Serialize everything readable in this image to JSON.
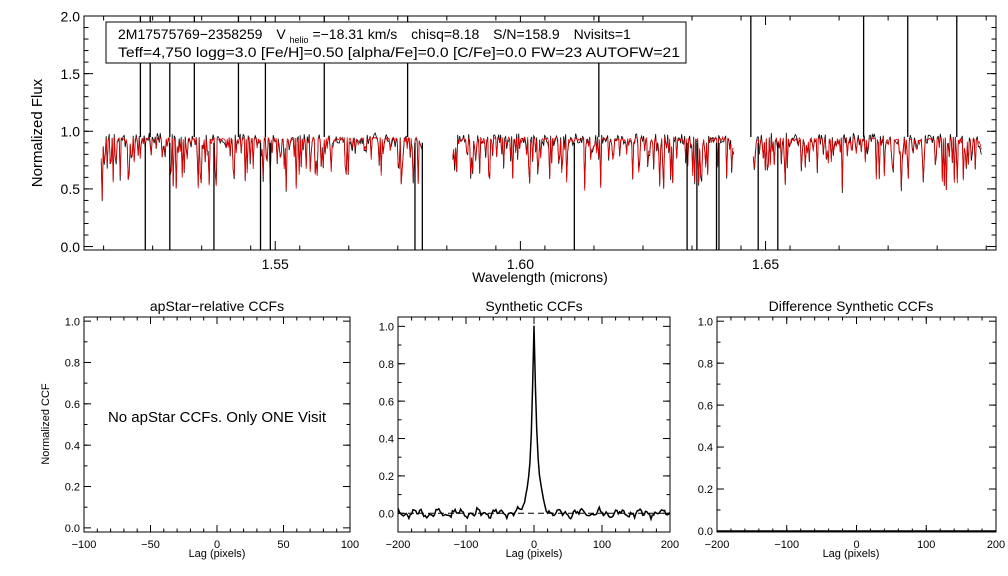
{
  "colors": {
    "observed": "#000000",
    "model": "#e00000",
    "axis": "#000000",
    "background": "#ffffff"
  },
  "chart_data": [
    {
      "id": "spectrum",
      "type": "line",
      "title": "",
      "xlabel": "Wavelength (microns)",
      "ylabel": "Normalized Flux",
      "xlim": [
        1.511,
        1.697
      ],
      "ylim": [
        -0.03,
        2.0
      ],
      "xticks": [
        1.55,
        1.6,
        1.65
      ],
      "xtick_labels": [
        "1.55",
        "1.60",
        "1.65"
      ],
      "yticks": [
        0.0,
        0.5,
        1.0,
        1.5,
        2.0
      ],
      "ytick_labels": [
        "0.0",
        "0.5",
        "1.0",
        "1.5",
        "2.0"
      ],
      "chips": [
        [
          1.5145,
          1.5801
        ],
        [
          1.5862,
          1.6437
        ],
        [
          1.6475,
          1.6942
        ]
      ],
      "continuum": 0.95,
      "annotation": {
        "star_id": "2M17575769−2358259",
        "vhelio_label": "V",
        "vhelio_sub": "helio",
        "vhelio_value": "=−18.31 km/s",
        "chisq": "chisq=8.18",
        "snr": "S/N=158.9",
        "nvisits": "Nvisits=1",
        "params_line": "Teff=4,750 logg=3.0 [Fe/H]=0.50 [alpha/Fe]=0.0 [C/Fe]=0.0 FW=23 AUTOFW=21"
      },
      "series": [
        {
          "name": "observed",
          "color": "#000000",
          "spikes_up": [
            1.5225,
            1.5245,
            1.5285,
            1.5335,
            1.5425,
            1.548,
            1.56,
            1.577,
            1.616,
            1.647,
            1.67,
            1.679,
            1.689
          ],
          "spikes_down": [
            1.5235,
            1.5285,
            1.5375,
            1.547,
            1.549,
            1.5785,
            1.58,
            1.611,
            1.634,
            1.636,
            1.64,
            1.6405,
            1.6485,
            1.6525
          ]
        },
        {
          "name": "model",
          "color": "#e00000"
        }
      ]
    },
    {
      "id": "apstar-ccf",
      "type": "line",
      "title": "apStar−relative CCFs",
      "xlabel": "Lag (pixels)",
      "ylabel": "Normalized CCF",
      "xlim": [
        -100,
        100
      ],
      "ylim": [
        -0.02,
        1.02
      ],
      "xticks": [
        -100,
        -50,
        0,
        50,
        100
      ],
      "xtick_labels": [
        "−100",
        "−50",
        "0",
        "50",
        "100"
      ],
      "yticks": [
        0.0,
        0.2,
        0.4,
        0.6,
        0.8,
        1.0
      ],
      "ytick_labels": [
        "0.0",
        "0.2",
        "0.4",
        "0.6",
        "0.8",
        "1.0"
      ],
      "message": "No apStar CCFs.  Only ONE Visit",
      "series": []
    },
    {
      "id": "synthetic-ccf",
      "type": "line",
      "title": "Synthetic CCFs",
      "xlabel": "Lag (pixels)",
      "ylabel": "",
      "xlim": [
        -200,
        200
      ],
      "ylim": [
        -0.1,
        1.05
      ],
      "xticks": [
        -200,
        -100,
        0,
        100,
        200
      ],
      "xtick_labels": [
        "−200",
        "−100",
        "0",
        "100",
        "200"
      ],
      "yticks": [
        0.0,
        0.2,
        0.4,
        0.6,
        0.8,
        1.0
      ],
      "ytick_labels": [
        "0.0",
        "0.2",
        "0.4",
        "0.6",
        "0.8",
        "1.0"
      ],
      "zero_line": 0.0,
      "peak": {
        "lag": 0,
        "value": 1.0,
        "width": 5
      },
      "series": [
        {
          "name": "ccf",
          "color": "#000000"
        }
      ]
    },
    {
      "id": "difference-ccf",
      "type": "line",
      "title": "Difference Synthetic CCFs",
      "xlabel": "Lag (pixels)",
      "ylabel": "",
      "xlim": [
        -200,
        200
      ],
      "ylim": [
        -0.005,
        1.02
      ],
      "xticks": [
        -200,
        -100,
        0,
        100,
        200
      ],
      "xtick_labels": [
        "−200",
        "−100",
        "0",
        "100",
        "200"
      ],
      "yticks": [
        0.0,
        0.2,
        0.4,
        0.6,
        0.8,
        1.0
      ],
      "ytick_labels": [
        "0.0",
        "0.2",
        "0.4",
        "0.6",
        "0.8",
        "1.0"
      ],
      "series": [
        {
          "name": "difference",
          "color": "#000000",
          "values": [
            0,
            0
          ]
        }
      ]
    }
  ]
}
